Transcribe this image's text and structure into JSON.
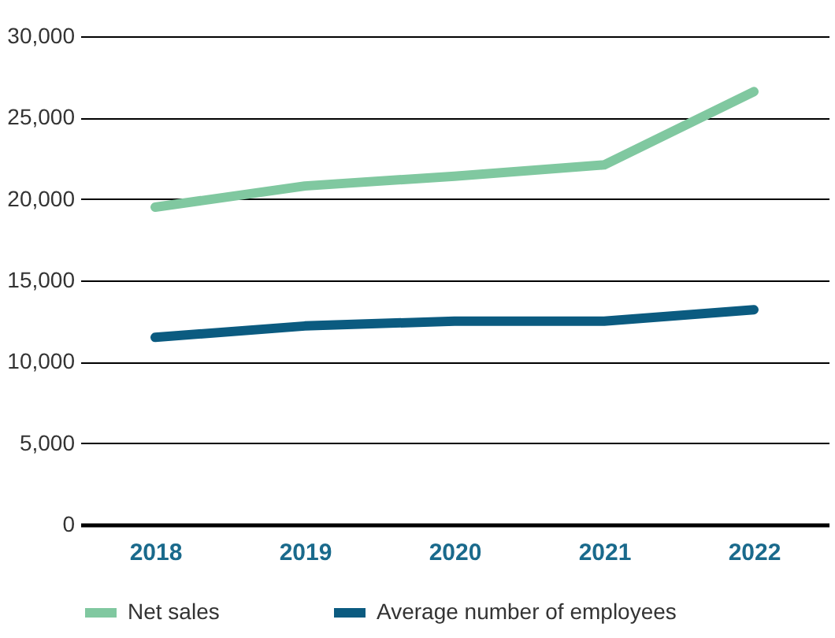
{
  "chart_data": {
    "type": "line",
    "categories": [
      "2018",
      "2019",
      "2020",
      "2021",
      "2022"
    ],
    "series": [
      {
        "name": "Net sales",
        "color": "#80c8a0",
        "values": [
          19500,
          20800,
          21400,
          22100,
          26600
        ]
      },
      {
        "name": "Average number of employees",
        "color": "#0b5b80",
        "values": [
          11500,
          12200,
          12500,
          12500,
          13200
        ]
      }
    ],
    "ylim": [
      0,
      30000
    ],
    "yticks": [
      0,
      {
        "value": 5000,
        "label": "5,000"
      },
      {
        "value": 10000,
        "label": "10,000"
      },
      {
        "value": 15000,
        "label": "15,000"
      },
      {
        "value": 20000,
        "label": "20,000"
      },
      {
        "value": 25000,
        "label": "25,000"
      },
      {
        "value": 30000,
        "label": "30,000"
      }
    ],
    "grid": "y",
    "legend": "bottom",
    "marker": "none",
    "line_style": "solid"
  }
}
